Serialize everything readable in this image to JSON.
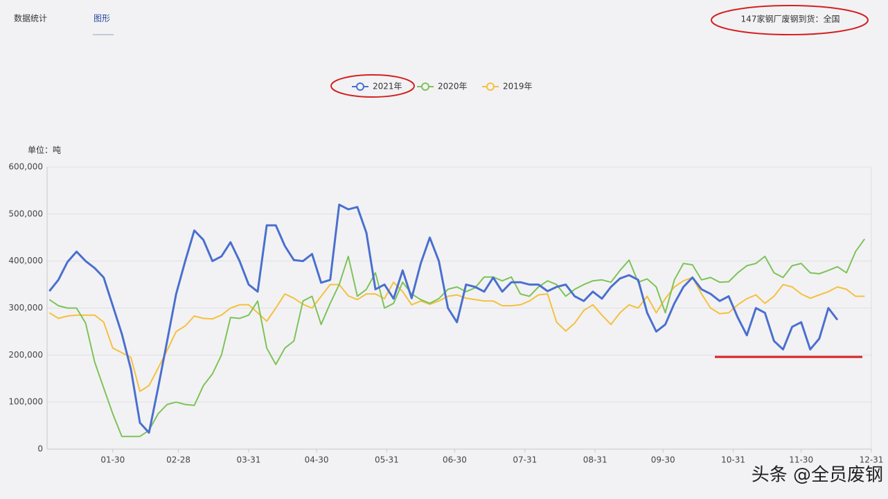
{
  "tabs": [
    "数据统计",
    "图形"
  ],
  "filter_label": "147家钢厂废钢到货：全国",
  "watermark": "头条 @全员废钢",
  "chart_data": {
    "type": "line",
    "unit_label": "单位：吨",
    "x": [
      "01-02",
      "01-06",
      "01-10",
      "01-14",
      "01-18",
      "01-22",
      "01-26",
      "01-30",
      "02-03",
      "02-07",
      "02-11",
      "02-15",
      "02-19",
      "02-23",
      "02-27",
      "03-03",
      "03-07",
      "03-11",
      "03-15",
      "03-19",
      "03-23",
      "03-27",
      "03-31",
      "04-04",
      "04-08",
      "04-12",
      "04-16",
      "04-20",
      "04-24",
      "04-28",
      "05-02",
      "05-06",
      "05-10",
      "05-14",
      "05-18",
      "05-22",
      "05-26",
      "05-30",
      "06-03",
      "06-07",
      "06-11",
      "06-15",
      "06-19",
      "06-23",
      "06-27",
      "07-01",
      "07-05",
      "07-09",
      "07-13",
      "07-17",
      "07-21",
      "07-25",
      "07-29",
      "08-02",
      "08-06",
      "08-10",
      "08-14",
      "08-18",
      "08-22",
      "08-26",
      "08-30",
      "09-03",
      "09-07",
      "09-11",
      "09-15",
      "09-19",
      "09-23",
      "09-27",
      "10-01",
      "10-05",
      "10-09",
      "10-13",
      "10-17",
      "10-21",
      "10-25",
      "10-29",
      "11-02",
      "11-06",
      "11-10",
      "11-14",
      "11-18",
      "11-22",
      "11-26",
      "11-30",
      "12-04",
      "12-08",
      "12-12",
      "12-16",
      "12-20",
      "12-24",
      "12-28"
    ],
    "xlim": [
      "01-01",
      "12-31"
    ],
    "xticks": [
      "01-30",
      "02-28",
      "03-31",
      "04-30",
      "05-31",
      "06-30",
      "07-31",
      "08-31",
      "09-30",
      "10-31",
      "11-30",
      "12-31"
    ],
    "ylim": [
      0,
      600000
    ],
    "yticks": [
      0,
      {
        "value": 100000,
        "label": "100,000"
      },
      {
        "value": 200000,
        "label": "200,000"
      },
      {
        "value": 300000,
        "label": "300,000"
      },
      {
        "value": 400000,
        "label": "400,000"
      },
      {
        "value": 500000,
        "label": "500,000"
      },
      {
        "value": 600000,
        "label": "600,000"
      }
    ],
    "grid": true,
    "legend": "top",
    "series": [
      {
        "name": "2021年",
        "color": "#4a6fcf",
        "values": [
          336000,
          360000,
          398000,
          420000,
          400000,
          385000,
          365000,
          305000,
          245000,
          170000,
          56000,
          35000,
          130000,
          230000,
          330000,
          400000,
          465000,
          445000,
          400000,
          410000,
          440000,
          400000,
          350000,
          335000,
          476000,
          476000,
          432000,
          402000,
          400000,
          415000,
          354000,
          360000,
          520000,
          510000,
          515000,
          460000,
          340000,
          350000,
          320000,
          380000,
          321000,
          395000,
          450000,
          400000,
          300000,
          270000,
          350000,
          345000,
          335000,
          365000,
          335000,
          355000,
          355000,
          350000,
          350000,
          336000,
          345000,
          350000,
          325000,
          315000,
          335000,
          320000,
          345000,
          363000,
          370000,
          360000,
          290000,
          250000,
          265000,
          310000,
          345000,
          365000,
          340000,
          330000,
          315000,
          325000,
          280000,
          242000,
          300000,
          290000,
          230000,
          212000,
          260000,
          270000,
          212000,
          235000,
          300000,
          275000,
          null,
          null,
          null
        ]
      },
      {
        "name": "2020年",
        "color": "#7dc357",
        "values": [
          318000,
          305000,
          300000,
          300000,
          268000,
          185000,
          130000,
          75000,
          27000,
          27000,
          27000,
          40000,
          75000,
          95000,
          100000,
          95000,
          93000,
          135000,
          160000,
          200000,
          280000,
          278000,
          285000,
          315000,
          215000,
          180000,
          215000,
          230000,
          315000,
          325000,
          265000,
          310000,
          350000,
          410000,
          325000,
          340000,
          375000,
          300000,
          310000,
          355000,
          330000,
          318000,
          310000,
          320000,
          340000,
          345000,
          335000,
          343000,
          366000,
          366000,
          358000,
          366000,
          330000,
          325000,
          345000,
          358000,
          350000,
          325000,
          340000,
          350000,
          358000,
          360000,
          355000,
          380000,
          402000,
          355000,
          362000,
          345000,
          290000,
          360000,
          395000,
          392000,
          360000,
          365000,
          355000,
          356000,
          375000,
          390000,
          395000,
          410000,
          375000,
          365000,
          390000,
          395000,
          375000,
          373000,
          380000,
          388000,
          375000,
          420000,
          447000
        ]
      },
      {
        "name": "2019年",
        "color": "#f5c03c",
        "values": [
          290000,
          278000,
          283000,
          285000,
          285000,
          285000,
          270000,
          215000,
          205000,
          195000,
          123000,
          135000,
          172000,
          210000,
          250000,
          262000,
          283000,
          278000,
          277000,
          285000,
          300000,
          307000,
          307000,
          290000,
          272000,
          300000,
          330000,
          321000,
          308000,
          300000,
          325000,
          350000,
          350000,
          326000,
          318000,
          330000,
          330000,
          320000,
          355000,
          335000,
          307000,
          315000,
          308000,
          315000,
          325000,
          328000,
          321000,
          318000,
          315000,
          315000,
          305000,
          305000,
          307000,
          315000,
          328000,
          330000,
          270000,
          251000,
          268000,
          295000,
          307000,
          285000,
          265000,
          290000,
          307000,
          300000,
          325000,
          290000,
          320000,
          345000,
          358000,
          365000,
          330000,
          300000,
          288000,
          290000,
          307000,
          320000,
          328000,
          310000,
          325000,
          350000,
          345000,
          330000,
          321000,
          328000,
          335000,
          345000,
          340000,
          325000,
          325000
        ]
      }
    ]
  }
}
